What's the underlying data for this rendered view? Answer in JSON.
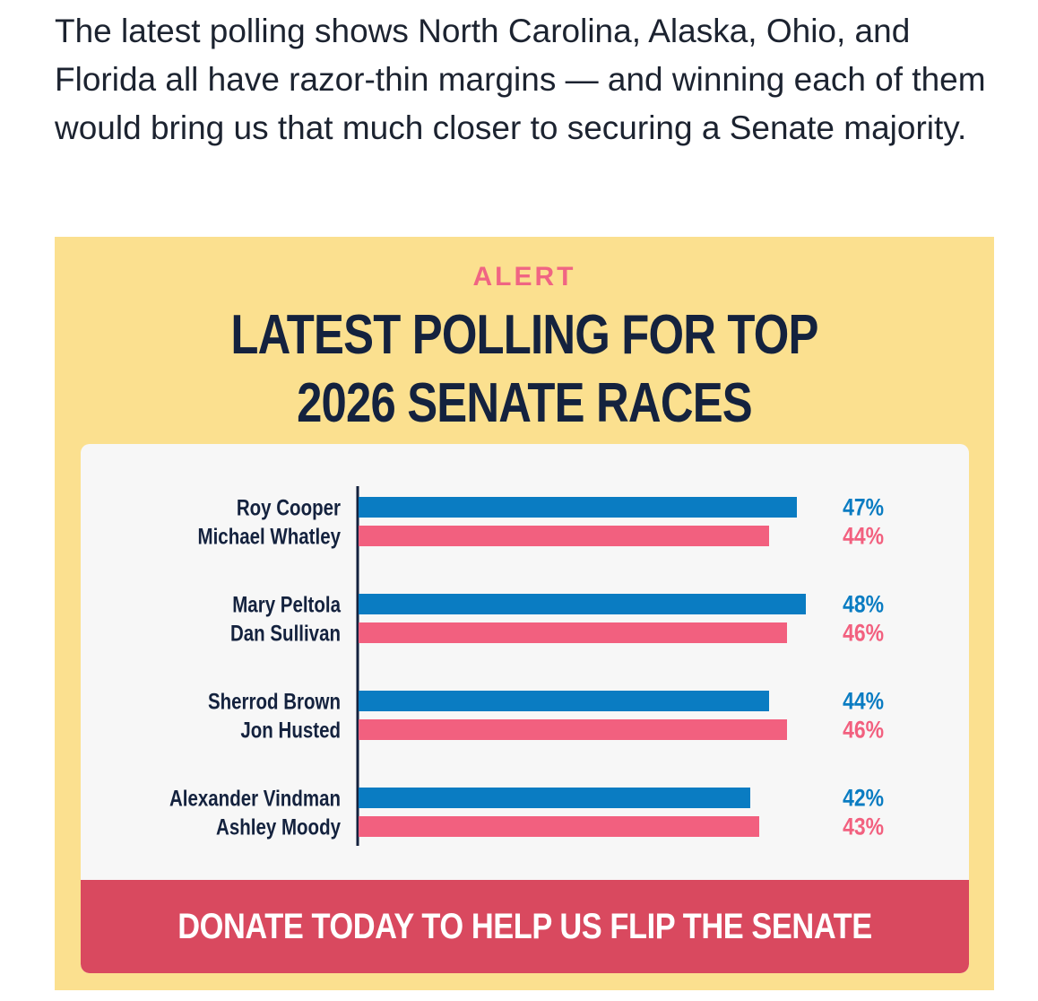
{
  "intro_text": "The latest polling shows North Carolina, Alaska, Ohio, and Florida all have razor-thin margins — and winning each of them would bring us that much closer to securing a Senate majority.",
  "graphic": {
    "eyebrow": "ALERT",
    "headline_line1": "LATEST POLLING FOR TOP",
    "headline_line2": "2026 SENATE RACES",
    "cta_label": "DONATE TODAY TO HELP US FLIP THE SENATE"
  },
  "colors": {
    "background_panel": "#fbe08f",
    "card": "#f7f7f7",
    "democrat": "#0a7cc2",
    "republican": "#f2607f",
    "cta": "#d9495f",
    "ink": "#14223e"
  },
  "chart_data": {
    "type": "bar",
    "orientation": "horizontal",
    "value_unit": "%",
    "grid": false,
    "groups": [
      {
        "bars": [
          {
            "label": "Roy Cooper",
            "value": 47,
            "party": "democrat"
          },
          {
            "label": "Michael Whatley",
            "value": 44,
            "party": "republican"
          }
        ]
      },
      {
        "bars": [
          {
            "label": "Mary Peltola",
            "value": 48,
            "party": "democrat"
          },
          {
            "label": "Dan Sullivan",
            "value": 46,
            "party": "republican"
          }
        ]
      },
      {
        "bars": [
          {
            "label": "Sherrod Brown",
            "value": 44,
            "party": "democrat"
          },
          {
            "label": "Jon Husted",
            "value": 46,
            "party": "republican"
          }
        ]
      },
      {
        "bars": [
          {
            "label": "Alexander Vindman",
            "value": 42,
            "party": "democrat"
          },
          {
            "label": "Ashley Moody",
            "value": 43,
            "party": "republican"
          }
        ]
      }
    ]
  }
}
